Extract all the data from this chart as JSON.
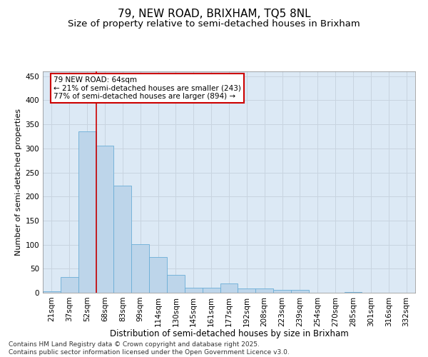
{
  "title1": "79, NEW ROAD, BRIXHAM, TQ5 8NL",
  "title2": "Size of property relative to semi-detached houses in Brixham",
  "xlabel": "Distribution of semi-detached houses by size in Brixham",
  "ylabel": "Number of semi-detached properties",
  "categories": [
    "21sqm",
    "37sqm",
    "52sqm",
    "68sqm",
    "83sqm",
    "99sqm",
    "114sqm",
    "130sqm",
    "145sqm",
    "161sqm",
    "177sqm",
    "192sqm",
    "208sqm",
    "223sqm",
    "239sqm",
    "254sqm",
    "270sqm",
    "285sqm",
    "301sqm",
    "316sqm",
    "332sqm"
  ],
  "values": [
    3,
    32,
    335,
    305,
    222,
    101,
    74,
    37,
    10,
    10,
    20,
    9,
    9,
    6,
    6,
    0,
    0,
    1,
    0,
    0,
    0
  ],
  "bar_color": "#bdd5ea",
  "bar_edge_color": "#6aaed6",
  "grid_color": "#c8d4e0",
  "background_color": "#dce9f5",
  "vline_x": 2.5,
  "vline_color": "#cc0000",
  "annotation_line1": "79 NEW ROAD: 64sqm",
  "annotation_line2": "← 21% of semi-detached houses are smaller (243)",
  "annotation_line3": "77% of semi-detached houses are larger (894) →",
  "annotation_box_color": "#cc0000",
  "ylim": [
    0,
    460
  ],
  "yticks": [
    0,
    50,
    100,
    150,
    200,
    250,
    300,
    350,
    400,
    450
  ],
  "footer": "Contains HM Land Registry data © Crown copyright and database right 2025.\nContains public sector information licensed under the Open Government Licence v3.0.",
  "title1_fontsize": 11,
  "title2_fontsize": 9.5,
  "xlabel_fontsize": 8.5,
  "ylabel_fontsize": 8,
  "tick_fontsize": 7.5,
  "annot_fontsize": 7.5,
  "footer_fontsize": 6.5
}
